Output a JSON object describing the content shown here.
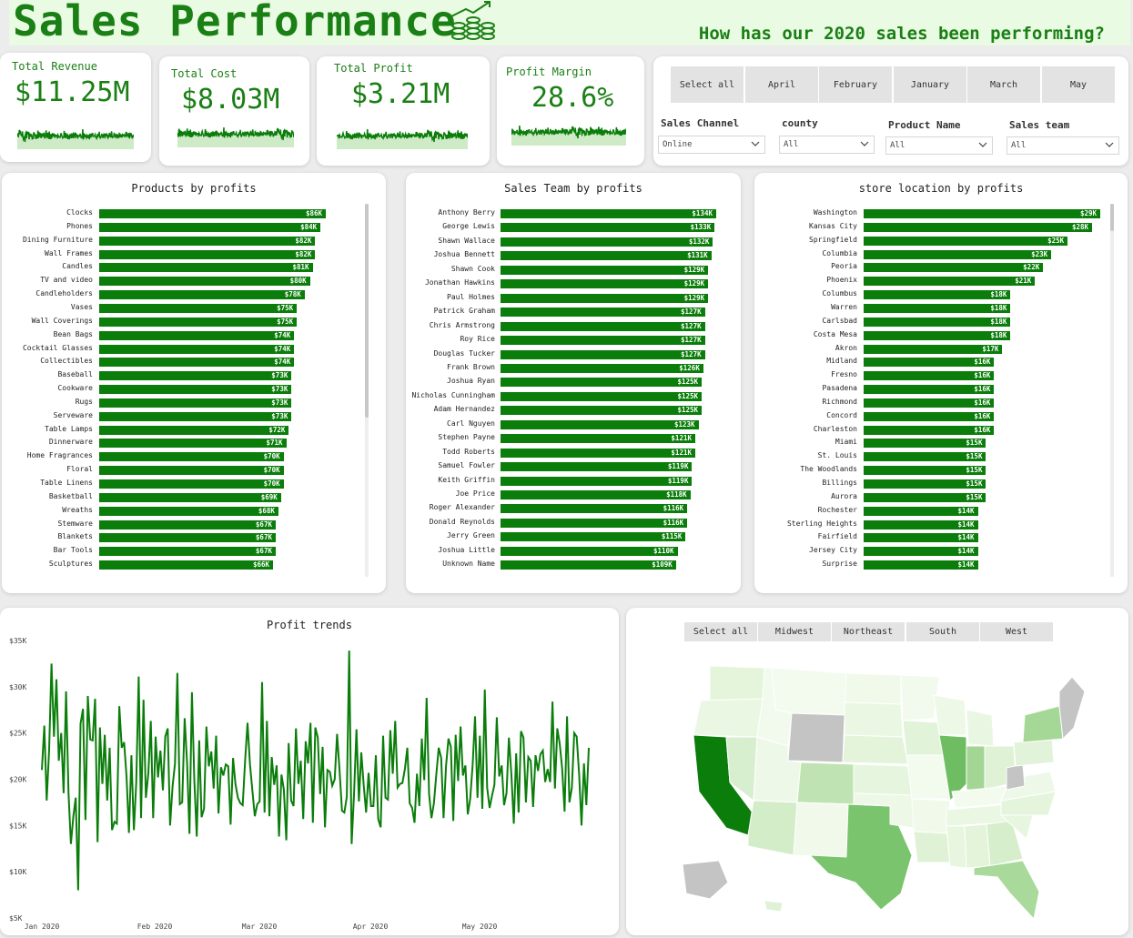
{
  "header": {
    "title": "Sales Performance",
    "subtitle": "How has our 2020 sales been performing?"
  },
  "kpis": [
    {
      "label": "Total Revenue",
      "value": "$11.25M"
    },
    {
      "label": "Total Cost",
      "value": "$8.03M"
    },
    {
      "label": "Total Profit",
      "value": "$3.21M"
    },
    {
      "label": "Profit Margin",
      "value": "28.6%"
    }
  ],
  "months": [
    "Select all",
    "April",
    "February",
    "January",
    "March",
    "May"
  ],
  "filters": [
    {
      "label": "Sales Channel",
      "value": "Online"
    },
    {
      "label": "county",
      "value": "All"
    },
    {
      "label": "Product Name",
      "value": "All"
    },
    {
      "label": "Sales team",
      "value": "All"
    }
  ],
  "colors": {
    "accent": "#1a7f14",
    "bar": "#0a7d0a",
    "header_bg": "#e9fbe3"
  },
  "chart_data": [
    {
      "type": "bar",
      "title": "Products by profits",
      "categories": [
        "Clocks",
        "Phones",
        "Dining Furniture",
        "Wall Frames",
        "Candles",
        "TV and video",
        "Candleholders",
        "Vases",
        "Wall Coverings",
        "Bean Bags",
        "Cocktail Glasses",
        "Collectibles",
        "Baseball",
        "Cookware",
        "Rugs",
        "Serveware",
        "Table Lamps",
        "Dinnerware",
        "Home Fragrances",
        "Floral",
        "Table Linens",
        "Basketball",
        "Wreaths",
        "Stemware",
        "Blankets",
        "Bar Tools",
        "Sculptures"
      ],
      "values": [
        86,
        84,
        82,
        82,
        81,
        80,
        78,
        75,
        75,
        74,
        74,
        74,
        73,
        73,
        73,
        73,
        72,
        71,
        70,
        70,
        70,
        69,
        68,
        67,
        67,
        67,
        66
      ],
      "labels": [
        "$86K",
        "$84K",
        "$82K",
        "$82K",
        "$81K",
        "$80K",
        "$78K",
        "$75K",
        "$75K",
        "$74K",
        "$74K",
        "$74K",
        "$73K",
        "$73K",
        "$73K",
        "$73K",
        "$72K",
        "$71K",
        "$70K",
        "$70K",
        "$70K",
        "$69K",
        "$68K",
        "$67K",
        "$67K",
        "$67K",
        "$66K"
      ]
    },
    {
      "type": "bar",
      "title": "Sales Team by profits",
      "categories": [
        "Anthony Berry",
        "George Lewis",
        "Shawn Wallace",
        "Joshua Bennett",
        "Shawn Cook",
        "Jonathan Hawkins",
        "Paul Holmes",
        "Patrick Graham",
        "Chris Armstrong",
        "Roy Rice",
        "Douglas Tucker",
        "Frank Brown",
        "Joshua Ryan",
        "Nicholas Cunningham",
        "Adam Hernandez",
        "Carl Nguyen",
        "Stephen Payne",
        "Todd Roberts",
        "Samuel Fowler",
        "Keith Griffin",
        "Joe Price",
        "Roger Alexander",
        "Donald Reynolds",
        "Jerry Green",
        "Joshua Little",
        "Unknown Name"
      ],
      "values": [
        134,
        133,
        132,
        131,
        129,
        129,
        129,
        127,
        127,
        127,
        127,
        126,
        125,
        125,
        125,
        123,
        121,
        121,
        119,
        119,
        118,
        116,
        116,
        115,
        110,
        109
      ],
      "labels": [
        "$134K",
        "$133K",
        "$132K",
        "$131K",
        "$129K",
        "$129K",
        "$129K",
        "$127K",
        "$127K",
        "$127K",
        "$127K",
        "$126K",
        "$125K",
        "$125K",
        "$125K",
        "$123K",
        "$121K",
        "$121K",
        "$119K",
        "$119K",
        "$118K",
        "$116K",
        "$116K",
        "$115K",
        "$110K",
        "$109K"
      ]
    },
    {
      "type": "bar",
      "title": "store location by profits",
      "categories": [
        "Washington",
        "Kansas City",
        "Springfield",
        "Columbia",
        "Peoria",
        "Phoenix",
        "Columbus",
        "Warren",
        "Carlsbad",
        "Costa Mesa",
        "Akron",
        "Midland",
        "Fresno",
        "Pasadena",
        "Richmond",
        "Concord",
        "Charleston",
        "Miami",
        "St. Louis",
        "The Woodlands",
        "Billings",
        "Aurora",
        "Rochester",
        "Sterling Heights",
        "Fairfield",
        "Jersey City",
        "Surprise"
      ],
      "values": [
        29,
        28,
        25,
        23,
        22,
        21,
        18,
        18,
        18,
        18,
        17,
        16,
        16,
        16,
        16,
        16,
        16,
        15,
        15,
        15,
        15,
        15,
        14,
        14,
        14,
        14,
        14
      ],
      "labels": [
        "$29K",
        "$28K",
        "$25K",
        "$23K",
        "$22K",
        "$21K",
        "$18K",
        "$18K",
        "$18K",
        "$18K",
        "$17K",
        "$16K",
        "$16K",
        "$16K",
        "$16K",
        "$16K",
        "$16K",
        "$15K",
        "$15K",
        "$15K",
        "$15K",
        "$15K",
        "$14K",
        "$14K",
        "$14K",
        "$14K",
        "$14K"
      ]
    },
    {
      "type": "line",
      "title": "Profit trends",
      "ylim": [
        5,
        35
      ],
      "y_ticks": [
        "$35K",
        "$30K",
        "$25K",
        "$20K",
        "$15K",
        "$10K",
        "$5K"
      ],
      "x_ticks": [
        "Jan 2020",
        "Feb 2020",
        "Mar 2020",
        "Apr 2020",
        "May 2020"
      ],
      "values": [
        21,
        25.8,
        17.7,
        23.2,
        32.5,
        24.6,
        30.8,
        22,
        25,
        18.5,
        29.5,
        18.5,
        13,
        16,
        18,
        8,
        26,
        27.6,
        15.6,
        29,
        24.3,
        24.2,
        28.7,
        13.2,
        25.6,
        19.5,
        24.8,
        17.7,
        23.4,
        14.5,
        15.4,
        15.2,
        27.9,
        23.4,
        24,
        20.2,
        14.2,
        22.6,
        14.5,
        19.6,
        31.1,
        15.8,
        28.6,
        18,
        20.6,
        26.3,
        15.8,
        24.6,
        20.2,
        23.1,
        18.8,
        24.6,
        25.5,
        15,
        19.2,
        21.7,
        31.5,
        17.3,
        17.5,
        26.6,
        21.7,
        14.1,
        29.4,
        20,
        13.8,
        24.2,
        15.9,
        16.8,
        25.7,
        21.4,
        23,
        19,
        24.7,
        16.3,
        21.3,
        20.4,
        21.6,
        21.4,
        15.1,
        22.3,
        19.5,
        18,
        17.4,
        17.2,
        22.1,
        26.1,
        21.6,
        18.7,
        16,
        17.3,
        17.6,
        30.5,
        16.4,
        26.3,
        16,
        22.4,
        19.4,
        21.5,
        13.8,
        20.5,
        18.9,
        13.4,
        23.9,
        17.7,
        17.1,
        25.5,
        19.5,
        22,
        15.7,
        24.1,
        21.7,
        26.1,
        15.3,
        25.6,
        24.5,
        18.4,
        23.5,
        14.8,
        21,
        20.8,
        19.3,
        20,
        24.9,
        21,
        16.6,
        16.4,
        18.1,
        33.9,
        13,
        18.3,
        25.4,
        17.6,
        22.9,
        19.3,
        16.4,
        20.7,
        17.1,
        17.1,
        22.6,
        15.7,
        14.8,
        24.7,
        18,
        17.8,
        25.3,
        20.6,
        26.3,
        19.1,
        19.5,
        19.6,
        21.1,
        23.4,
        17.4,
        16.9,
        15.3,
        20.6,
        17.1,
        24.4,
        19.9,
        28.8,
        18.4,
        15.8,
        17.4,
        20.6,
        23.4,
        22.3,
        15.8,
        21.4,
        24.4,
        23.5,
        15.5,
        24.8,
        19.8,
        25.7,
        20.4,
        21.5,
        16.2,
        17.9,
        21.6,
        26.8,
        18,
        24.7,
        16.8,
        29.7,
        19.1,
        16.9,
        18.2,
        19.4,
        26.7,
        20.3,
        21.5,
        17.2,
        18.5,
        24.5,
        20.6,
        15.2,
        22.8,
        16.4,
        25.2,
        24.5,
        17.5,
        22.4,
        22,
        17,
        22.6,
        20.9,
        22.7,
        23.1,
        19.7,
        21.1,
        19.7,
        28.4,
        19,
        25.5,
        23.8,
        21.2,
        16.5,
        26.8,
        17.5,
        19.1,
        25,
        24.6,
        20.5,
        15,
        21.7,
        17.2,
        23.4
      ]
    }
  ],
  "map": {
    "regions": [
      "Select all",
      "Midwest",
      "Northeast",
      "South",
      "West"
    ]
  }
}
